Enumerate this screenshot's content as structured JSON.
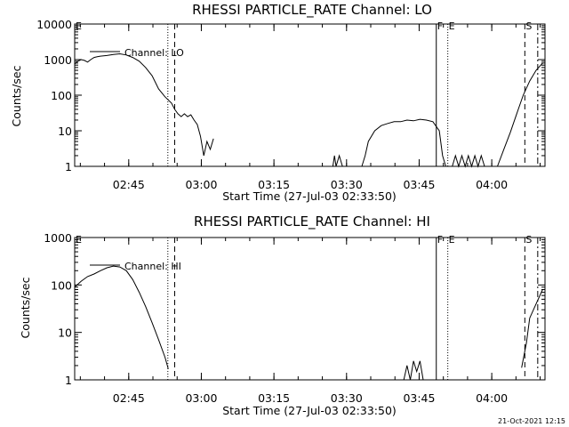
{
  "timestamp": "21-Oct-2021 12:15",
  "chart_data": [
    {
      "type": "line",
      "title": "RHESSI PARTICLE_RATE Channel: LO",
      "xlabel": "Start Time (27-Jul-03 02:33:50)",
      "ylabel": "Counts/sec",
      "xlim": [
        2.5639,
        4.1833
      ],
      "ylim": [
        1,
        10000
      ],
      "yscale": "log",
      "xtick_values": [
        2.75,
        3.0,
        3.25,
        3.5,
        3.75,
        4.0
      ],
      "xtick_labels": [
        "02:45",
        "03:00",
        "03:15",
        "03:30",
        "03:45",
        "04:00"
      ],
      "ytick_values": [
        1,
        10,
        100,
        1000,
        10000
      ],
      "ytick_labels": [
        "1",
        "10",
        "100",
        "1000",
        "10000"
      ],
      "legend": "Channel: LO",
      "markers": [
        {
          "label": "E",
          "time": 2.5639,
          "style": "none"
        },
        {
          "label": "",
          "time": 2.8847,
          "style": "dotted"
        },
        {
          "label": "",
          "time": 2.9083,
          "style": "dashed"
        },
        {
          "label": "F",
          "time": 3.809,
          "style": "solid"
        },
        {
          "label": "E",
          "time": 3.8486,
          "style": "dotted"
        },
        {
          "label": "S",
          "time": 4.1139,
          "style": "dashed"
        },
        {
          "label": "",
          "time": 4.1583,
          "style": "dashdot"
        }
      ],
      "series": [
        {
          "name": "Channel: LO",
          "segments": [
            [
              [
                2.5639,
                750
              ],
              [
                2.575,
                900
              ],
              [
                2.5861,
                1000
              ],
              [
                2.5972,
                950
              ],
              [
                2.6083,
                850
              ],
              [
                2.6194,
                1000
              ],
              [
                2.6306,
                1150
              ],
              [
                2.6417,
                1200
              ],
              [
                2.6528,
                1250
              ],
              [
                2.675,
                1300
              ],
              [
                2.6972,
                1400
              ],
              [
                2.7194,
                1450
              ],
              [
                2.7417,
                1350
              ],
              [
                2.7639,
                1150
              ],
              [
                2.7861,
                900
              ],
              [
                2.8083,
                600
              ],
              [
                2.8306,
                350
              ],
              [
                2.8528,
                150
              ],
              [
                2.875,
                90
              ],
              [
                2.8972,
                60
              ],
              [
                2.9083,
                40
              ],
              [
                2.9194,
                30
              ],
              [
                2.9306,
                25
              ],
              [
                2.9417,
                30
              ],
              [
                2.9528,
                25
              ],
              [
                2.9639,
                28
              ],
              [
                2.975,
                20
              ],
              [
                2.9861,
                15
              ],
              [
                2.9972,
                7
              ],
              [
                3.0083,
                2
              ],
              [
                3.0194,
                5
              ],
              [
                3.0306,
                3
              ],
              [
                3.0417,
                6
              ]
            ],
            [
              [
                3.4528,
                1
              ],
              [
                3.4583,
                2
              ],
              [
                3.4639,
                1
              ],
              [
                3.475,
                2
              ],
              [
                3.4861,
                1
              ]
            ],
            [
              [
                3.5528,
                1
              ],
              [
                3.5639,
                2
              ],
              [
                3.575,
                5
              ],
              [
                3.5972,
                10
              ],
              [
                3.6194,
                14
              ],
              [
                3.6417,
                16
              ],
              [
                3.6639,
                18
              ],
              [
                3.6861,
                18
              ],
              [
                3.7083,
                20
              ],
              [
                3.7306,
                19
              ],
              [
                3.7528,
                21
              ],
              [
                3.775,
                20
              ],
              [
                3.7972,
                18
              ],
              [
                3.8194,
                10
              ],
              [
                3.8306,
                2
              ],
              [
                3.8417,
                1
              ]
            ],
            [
              [
                3.8639,
                1
              ],
              [
                3.875,
                2
              ],
              [
                3.8861,
                1
              ],
              [
                3.8972,
                2
              ],
              [
                3.9083,
                1
              ],
              [
                3.9194,
                2
              ],
              [
                3.9306,
                1
              ],
              [
                3.9417,
                2
              ],
              [
                3.9528,
                1
              ],
              [
                3.9639,
                2
              ],
              [
                3.975,
                1
              ]
            ],
            [
              [
                4.0194,
                1
              ],
              [
                4.0417,
                3
              ],
              [
                4.0639,
                9
              ],
              [
                4.0861,
                30
              ],
              [
                4.1083,
                100
              ],
              [
                4.1306,
                250
              ],
              [
                4.1528,
                500
              ],
              [
                4.175,
                800
              ]
            ]
          ]
        }
      ]
    },
    {
      "type": "line",
      "title": "RHESSI PARTICLE_RATE Channel: HI",
      "xlabel": "Start Time (27-Jul-03 02:33:50)",
      "ylabel": "Counts/sec",
      "xlim": [
        2.5639,
        4.1833
      ],
      "ylim": [
        1,
        1000
      ],
      "yscale": "log",
      "xtick_values": [
        2.75,
        3.0,
        3.25,
        3.5,
        3.75,
        4.0
      ],
      "xtick_labels": [
        "02:45",
        "03:00",
        "03:15",
        "03:30",
        "03:45",
        "04:00"
      ],
      "ytick_values": [
        1,
        10,
        100,
        1000
      ],
      "ytick_labels": [
        "1",
        "10",
        "100",
        "1000"
      ],
      "legend": "Channel: HI",
      "markers": [
        {
          "label": "E",
          "time": 2.5639,
          "style": "none"
        },
        {
          "label": "",
          "time": 2.8847,
          "style": "dotted"
        },
        {
          "label": "",
          "time": 2.9083,
          "style": "dashed"
        },
        {
          "label": "F",
          "time": 3.809,
          "style": "solid"
        },
        {
          "label": "E",
          "time": 3.8486,
          "style": "dotted"
        },
        {
          "label": "S",
          "time": 4.1139,
          "style": "dashed"
        },
        {
          "label": "",
          "time": 4.1583,
          "style": "dashdot"
        }
      ],
      "series": [
        {
          "name": "Channel: HI",
          "segments": [
            [
              [
                2.5639,
                90
              ],
              [
                2.5861,
                120
              ],
              [
                2.6083,
                150
              ],
              [
                2.6306,
                170
              ],
              [
                2.6528,
                200
              ],
              [
                2.675,
                230
              ],
              [
                2.6972,
                250
              ],
              [
                2.7194,
                240
              ],
              [
                2.7417,
                200
              ],
              [
                2.7639,
                130
              ],
              [
                2.7861,
                70
              ],
              [
                2.8083,
                35
              ],
              [
                2.8306,
                16
              ],
              [
                2.8528,
                7
              ],
              [
                2.875,
                3
              ],
              [
                2.8861,
                1.7
              ]
            ],
            [
              [
                3.6972,
                1
              ],
              [
                3.7083,
                2
              ],
              [
                3.7194,
                1
              ],
              [
                3.7306,
                2.5
              ],
              [
                3.7417,
                1.5
              ],
              [
                3.7528,
                2.5
              ],
              [
                3.7639,
                1
              ]
            ],
            [
              [
                4.1028,
                1.8
              ],
              [
                4.1194,
                6
              ],
              [
                4.1306,
                20
              ],
              [
                4.1528,
                40
              ],
              [
                4.175,
                80
              ]
            ]
          ]
        }
      ]
    }
  ]
}
